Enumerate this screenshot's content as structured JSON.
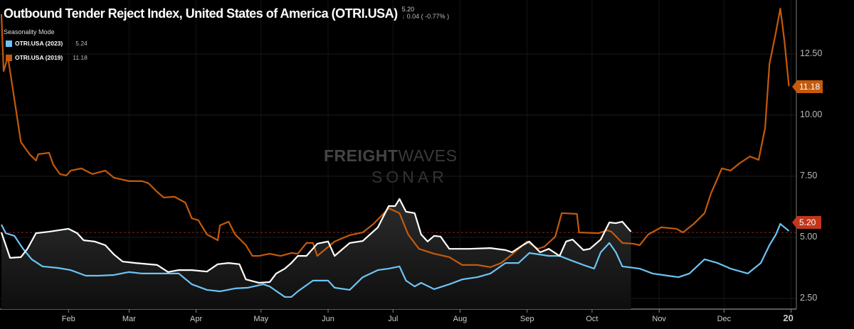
{
  "header": {
    "title": "Outbound Tender Reject Index, United States of America (OTRI.USA)",
    "last_value": "5.20",
    "change": "0.04 ( -0.77% )",
    "change_direction": "down",
    "mode_label": "Seasonality Mode"
  },
  "legend": [
    {
      "label": "OTRI.USA (2023)",
      "value": "5.24",
      "color": "#6cc4f5"
    },
    {
      "label": "OTRI.USA (2019)",
      "value": "11.18",
      "color": "#c45a0c"
    }
  ],
  "badges": {
    "orange": "11.18",
    "current": "5.20",
    "orange_color": "#c45a0c",
    "current_color": "#c2361d"
  },
  "watermark": {
    "line1a": "FREIGHT",
    "line1b": "WAVES",
    "line2": "SONAR"
  },
  "chart_data": {
    "type": "line",
    "title": "Outbound Tender Reject Index, United States of America (OTRI.USA)",
    "ylim": [
      1.95,
      14.7
    ],
    "yticks": [
      "2.50",
      "5.00",
      "7.50",
      "10.00",
      "12.50"
    ],
    "ytick_values": [
      2.5,
      5,
      7.5,
      10,
      12.5
    ],
    "xticks": [
      "Feb",
      "Mar",
      "Apr",
      "May",
      "Jun",
      "Jul",
      "Aug",
      "Sep",
      "Oct",
      "Nov",
      "Dec",
      "20"
    ],
    "grid": true,
    "reference_line": 5.2,
    "series": [
      {
        "name": "OTRI.USA (2019)",
        "color": "#c45a0c",
        "points": [
          [
            "Jan 1",
            14.13
          ],
          [
            "Jan 2",
            11.8
          ],
          [
            "Jan 4",
            12.38
          ],
          [
            "Jan 10",
            8.9
          ],
          [
            "Jan 14",
            8.4
          ],
          [
            "Jan 17",
            8.14
          ],
          [
            "Jan 18",
            8.4
          ],
          [
            "Jan 23",
            8.46
          ],
          [
            "Jan 25",
            7.97
          ],
          [
            "Jan 28",
            7.59
          ],
          [
            "Jan 31",
            7.53
          ],
          [
            "Feb 2",
            7.73
          ],
          [
            "Feb 7",
            7.82
          ],
          [
            "Feb 12",
            7.59
          ],
          [
            "Feb 18",
            7.73
          ],
          [
            "Feb 22",
            7.44
          ],
          [
            "Mar 1",
            7.3
          ],
          [
            "Mar 7",
            7.3
          ],
          [
            "Mar 10",
            7.21
          ],
          [
            "Mar 14",
            6.86
          ],
          [
            "Mar 17",
            6.63
          ],
          [
            "Mar 22",
            6.66
          ],
          [
            "Mar 27",
            6.42
          ],
          [
            "Mar 30",
            5.78
          ],
          [
            "Apr 2",
            5.7
          ],
          [
            "Apr 6",
            5.12
          ],
          [
            "Apr 11",
            4.88
          ],
          [
            "Apr 12",
            5.49
          ],
          [
            "Apr 16",
            5.64
          ],
          [
            "Apr 19",
            5.12
          ],
          [
            "Apr 24",
            4.68
          ],
          [
            "Apr 27",
            4.24
          ],
          [
            "Apr 30",
            4.24
          ],
          [
            "May 5",
            4.33
          ],
          [
            "May 10",
            4.24
          ],
          [
            "May 15",
            4.36
          ],
          [
            "May 18",
            4.33
          ],
          [
            "May 22",
            4.77
          ],
          [
            "May 25",
            4.77
          ],
          [
            "May 27",
            4.24
          ],
          [
            "Jun 4",
            4.83
          ],
          [
            "Jun 11",
            5.09
          ],
          [
            "Jun 17",
            5.2
          ],
          [
            "Jun 22",
            5.55
          ],
          [
            "Jun 29",
            6.19
          ],
          [
            "Jul 4",
            5.99
          ],
          [
            "Jul 8",
            5.12
          ],
          [
            "Jul 13",
            4.53
          ],
          [
            "Jul 20",
            4.33
          ],
          [
            "Jul 27",
            4.19
          ],
          [
            "Aug 2",
            3.87
          ],
          [
            "Aug 9",
            3.87
          ],
          [
            "Aug 15",
            3.78
          ],
          [
            "Aug 20",
            3.95
          ],
          [
            "Aug 25",
            4.3
          ],
          [
            "Sep 1",
            4.83
          ],
          [
            "Sep 6",
            4.53
          ],
          [
            "Sep 9",
            4.62
          ],
          [
            "Sep 14",
            5.03
          ],
          [
            "Sep 17",
            5.99
          ],
          [
            "Sep 24",
            5.96
          ],
          [
            "Sep 25",
            5.2
          ],
          [
            "Oct 4",
            5.17
          ],
          [
            "Oct 8",
            5.29
          ],
          [
            "Oct 10",
            5.23
          ],
          [
            "Oct 15",
            4.77
          ],
          [
            "Oct 20",
            4.74
          ],
          [
            "Oct 23",
            4.68
          ],
          [
            "Oct 27",
            5.12
          ],
          [
            "Nov 2",
            5.41
          ],
          [
            "Nov 9",
            5.35
          ],
          [
            "Nov 12",
            5.2
          ],
          [
            "Nov 17",
            5.55
          ],
          [
            "Nov 22",
            5.99
          ],
          [
            "Nov 25",
            6.8
          ],
          [
            "Nov 30",
            7.82
          ],
          [
            "Dec 4",
            7.73
          ],
          [
            "Dec 8",
            8.02
          ],
          [
            "Dec 13",
            8.31
          ],
          [
            "Dec 17",
            8.17
          ],
          [
            "Dec 20",
            9.48
          ],
          [
            "Dec 22",
            12.09
          ],
          [
            "Dec 25",
            13.4
          ],
          [
            "Dec 27",
            14.36
          ],
          [
            "Dec 28",
            13.69
          ],
          [
            "Dec 29",
            12.97
          ],
          [
            "Dec 31",
            11.18
          ]
        ]
      },
      {
        "name": "OTRI.USA (2023)",
        "color": "#6cc4f5",
        "points": [
          [
            "Jan 1",
            5.52
          ],
          [
            "Jan 3",
            5.17
          ],
          [
            "Jan 7",
            5.06
          ],
          [
            "Jan 11",
            4.53
          ],
          [
            "Jan 15",
            4.1
          ],
          [
            "Jan 20",
            3.81
          ],
          [
            "Jan 27",
            3.75
          ],
          [
            "Feb 2",
            3.66
          ],
          [
            "Feb 9",
            3.43
          ],
          [
            "Feb 15",
            3.43
          ],
          [
            "Feb 22",
            3.46
          ],
          [
            "Mar 1",
            3.58
          ],
          [
            "Mar 7",
            3.52
          ],
          [
            "Mar 17",
            3.52
          ],
          [
            "Mar 24",
            3.52
          ],
          [
            "Mar 30",
            3.08
          ],
          [
            "Apr 6",
            2.85
          ],
          [
            "Apr 12",
            2.79
          ],
          [
            "Apr 19",
            2.91
          ],
          [
            "Apr 25",
            2.94
          ],
          [
            "May 2",
            3.08
          ],
          [
            "May 5",
            2.99
          ],
          [
            "May 12",
            2.56
          ],
          [
            "May 15",
            2.56
          ],
          [
            "May 18",
            2.79
          ],
          [
            "May 25",
            3.23
          ],
          [
            "Jun 1",
            3.23
          ],
          [
            "Jun 4",
            2.94
          ],
          [
            "Jun 11",
            2.85
          ],
          [
            "Jun 17",
            3.37
          ],
          [
            "Jun 24",
            3.66
          ],
          [
            "Jun 29",
            3.72
          ],
          [
            "Jul 4",
            3.81
          ],
          [
            "Jul 7",
            3.23
          ],
          [
            "Jul 11",
            2.99
          ],
          [
            "Jul 14",
            3.14
          ],
          [
            "Jul 20",
            2.88
          ],
          [
            "Jul 27",
            3.08
          ],
          [
            "Aug 2",
            3.28
          ],
          [
            "Aug 9",
            3.37
          ],
          [
            "Aug 15",
            3.52
          ],
          [
            "Aug 22",
            3.95
          ],
          [
            "Aug 28",
            3.95
          ],
          [
            "Sep 2",
            4.36
          ],
          [
            "Sep 11",
            4.24
          ],
          [
            "Sep 16",
            4.24
          ],
          [
            "Sep 20",
            4.1
          ],
          [
            "Sep 27",
            3.87
          ],
          [
            "Oct 2",
            3.72
          ],
          [
            "Oct 5",
            4.39
          ],
          [
            "Oct 9",
            4.77
          ],
          [
            "Oct 12",
            4.39
          ],
          [
            "Oct 15",
            3.81
          ],
          [
            "Oct 23",
            3.72
          ],
          [
            "Oct 29",
            3.52
          ],
          [
            "Nov 5",
            3.43
          ],
          [
            "Nov 10",
            3.37
          ],
          [
            "Nov 15",
            3.52
          ],
          [
            "Nov 22",
            4.1
          ],
          [
            "Nov 28",
            3.95
          ],
          [
            "Dec 4",
            3.72
          ],
          [
            "Dec 12",
            3.52
          ],
          [
            "Dec 18",
            3.95
          ],
          [
            "Dec 22",
            4.68
          ],
          [
            "Dec 25",
            5.12
          ],
          [
            "Dec 27",
            5.55
          ],
          [
            "Dec 31",
            5.26
          ]
        ]
      },
      {
        "color": "#ffffff",
        "filled": true,
        "points": [
          [
            "Jan 1",
            5.2
          ],
          [
            "Jan 3",
            4.68
          ],
          [
            "Jan 5",
            4.16
          ],
          [
            "Jan 10",
            4.19
          ],
          [
            "Jan 13",
            4.53
          ],
          [
            "Jan 17",
            5.17
          ],
          [
            "Jan 23",
            5.23
          ],
          [
            "Feb 1",
            5.35
          ],
          [
            "Feb 5",
            5.17
          ],
          [
            "Feb 8",
            4.88
          ],
          [
            "Feb 13",
            4.83
          ],
          [
            "Feb 18",
            4.68
          ],
          [
            "Feb 22",
            4.3
          ],
          [
            "Feb 26",
            4.01
          ],
          [
            "Mar 4",
            3.95
          ],
          [
            "Mar 14",
            3.87
          ],
          [
            "Mar 19",
            3.58
          ],
          [
            "Mar 24",
            3.66
          ],
          [
            "Mar 30",
            3.66
          ],
          [
            "Apr 6",
            3.6
          ],
          [
            "Apr 11",
            3.9
          ],
          [
            "Apr 16",
            3.95
          ],
          [
            "Apr 21",
            3.9
          ],
          [
            "Apr 24",
            3.28
          ],
          [
            "Apr 30",
            3.14
          ],
          [
            "May 5",
            3.17
          ],
          [
            "May 8",
            3.52
          ],
          [
            "May 12",
            3.72
          ],
          [
            "May 15",
            3.95
          ],
          [
            "May 18",
            4.24
          ],
          [
            "May 22",
            4.24
          ],
          [
            "May 27",
            4.74
          ],
          [
            "Jun 1",
            4.83
          ],
          [
            "Jun 4",
            4.24
          ],
          [
            "Jun 11",
            4.77
          ],
          [
            "Jun 17",
            4.85
          ],
          [
            "Jun 24",
            5.41
          ],
          [
            "Jun 29",
            6.28
          ],
          [
            "Jul 2",
            6.28
          ],
          [
            "Jul 4",
            6.57
          ],
          [
            "Jul 7",
            6.05
          ],
          [
            "Jul 11",
            5.99
          ],
          [
            "Jul 14",
            5.12
          ],
          [
            "Jul 17",
            4.83
          ],
          [
            "Jul 20",
            5.06
          ],
          [
            "Jul 23",
            5.03
          ],
          [
            "Jul 27",
            4.53
          ],
          [
            "Aug 5",
            4.53
          ],
          [
            "Aug 15",
            4.56
          ],
          [
            "Aug 22",
            4.48
          ],
          [
            "Aug 25",
            4.39
          ],
          [
            "Aug 30",
            4.68
          ],
          [
            "Sep 2",
            4.83
          ],
          [
            "Sep 7",
            4.39
          ],
          [
            "Sep 11",
            4.53
          ],
          [
            "Sep 16",
            4.24
          ],
          [
            "Sep 19",
            4.83
          ],
          [
            "Sep 22",
            4.91
          ],
          [
            "Sep 27",
            4.48
          ],
          [
            "Sep 30",
            4.53
          ],
          [
            "Oct 5",
            4.91
          ],
          [
            "Oct 9",
            5.61
          ],
          [
            "Oct 12",
            5.58
          ],
          [
            "Oct 15",
            5.64
          ],
          [
            "Oct 19",
            5.23
          ]
        ]
      }
    ]
  }
}
